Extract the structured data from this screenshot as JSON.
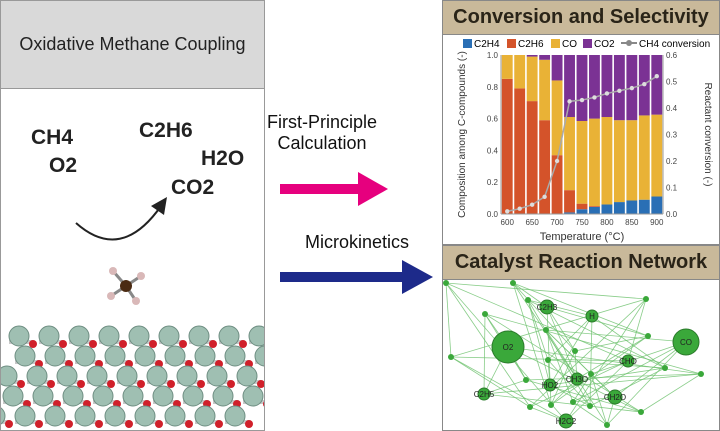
{
  "left_panel": {
    "title": "Oxidative Methane Coupling",
    "species": [
      "CH4",
      "O2",
      "C2H6",
      "H2O",
      "CO2"
    ]
  },
  "middle": {
    "step1": "First-Principle Calculation",
    "step2": "Microkinetics",
    "arrow1_color": "#e6007e",
    "arrow2_color": "#1d2a8a"
  },
  "right_top": {
    "title": "Conversion and Selectivity"
  },
  "right_bottom": {
    "title": "Catalyst Reaction Network",
    "nodes": [
      "C2H3",
      "H",
      "O2",
      "CO",
      "CHO",
      "CH3O",
      "HO2",
      "C2H5",
      "CH2O",
      "H2C2"
    ],
    "node_color": "#3aa83a"
  },
  "chart_data": {
    "type": "bar",
    "stacked": true,
    "xlabel": "Temperature (°C)",
    "ylabel": "Composition among C-compounds (-)",
    "y2label": "Reactant conversion (-)",
    "ylim": [
      0,
      1.0
    ],
    "y2lim": [
      0,
      0.6
    ],
    "categories": [
      600,
      625,
      650,
      675,
      700,
      725,
      750,
      775,
      800,
      825,
      850,
      875,
      900
    ],
    "xticks": [
      "600",
      "650",
      "700",
      "750",
      "800",
      "850",
      "900"
    ],
    "yticks": [
      "0.0",
      "0.2",
      "0.4",
      "0.6",
      "0.8",
      "1.0"
    ],
    "y2ticks": [
      "0.0",
      "0.1",
      "0.2",
      "0.3",
      "0.4",
      "0.5",
      "0.6"
    ],
    "legend_position": "top",
    "series": [
      {
        "name": "C2H4",
        "color": "#2a6fb5",
        "values": [
          0,
          0,
          0,
          0,
          0,
          0.01,
          0.03,
          0.045,
          0.06,
          0.075,
          0.085,
          0.09,
          0.11
        ]
      },
      {
        "name": "C2H6",
        "color": "#d4532a",
        "values": [
          0.85,
          0.79,
          0.71,
          0.59,
          0.37,
          0.14,
          0.035,
          0.005,
          0,
          0,
          0,
          0,
          0
        ]
      },
      {
        "name": "CO",
        "color": "#e9b236",
        "values": [
          0.15,
          0.21,
          0.28,
          0.38,
          0.47,
          0.46,
          0.52,
          0.55,
          0.55,
          0.515,
          0.505,
          0.53,
          0.515
        ]
      },
      {
        "name": "CO2",
        "color": "#7b3294",
        "values": [
          0,
          0,
          0.01,
          0.03,
          0.16,
          0.39,
          0.415,
          0.4,
          0.39,
          0.41,
          0.41,
          0.38,
          0.375
        ]
      }
    ],
    "line_series": {
      "name": "CH4 conversion",
      "axis": "right",
      "color": "#999999",
      "values": [
        0.01,
        0.02,
        0.035,
        0.065,
        0.2,
        0.425,
        0.43,
        0.44,
        0.455,
        0.465,
        0.475,
        0.49,
        0.52
      ]
    }
  }
}
